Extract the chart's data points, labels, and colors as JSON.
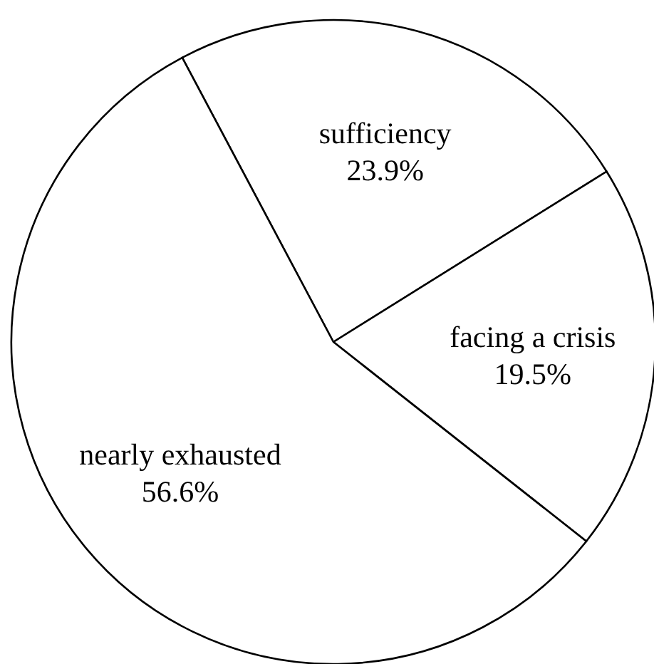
{
  "chart_data": {
    "type": "pie",
    "categories": [
      "sufficiency",
      "facing a crisis",
      "nearly exhausted"
    ],
    "values": [
      23.9,
      19.5,
      56.6
    ],
    "colors": [
      "#ffffff",
      "#ffffff",
      "#ffffff"
    ],
    "value_labels": [
      "23.9%",
      "19.5%",
      "56.6%"
    ]
  }
}
